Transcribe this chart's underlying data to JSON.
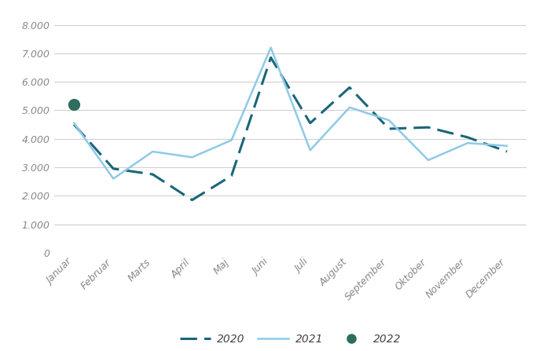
{
  "months": [
    "Januar",
    "Februar",
    "Marts",
    "April",
    "Maj",
    "Juni",
    "Juli",
    "August",
    "September",
    "Oktober",
    "November",
    "December"
  ],
  "data_2020": [
    4500,
    2950,
    2750,
    1850,
    2700,
    6850,
    4550,
    5800,
    4350,
    4400,
    4050,
    3550
  ],
  "data_2021": [
    4550,
    2600,
    3550,
    3350,
    3950,
    7200,
    3600,
    5100,
    4650,
    3250,
    3850,
    3750
  ],
  "data_2022_x": [
    0
  ],
  "data_2022_y": [
    5200
  ],
  "color_2020": "#1a6678",
  "color_2021": "#8ecae6",
  "color_2022": "#2d6e5e",
  "ylim": [
    0,
    8500
  ],
  "yticks": [
    0,
    1000,
    2000,
    3000,
    4000,
    5000,
    6000,
    7000,
    8000
  ],
  "ytick_labels": [
    "0",
    "1.000",
    "2.000",
    "3.000",
    "4.000",
    "5.000",
    "6.000",
    "7.000",
    "8.000"
  ],
  "background_color": "#ffffff",
  "grid_color": "#d0d0d0",
  "legend_labels": [
    "2020",
    "2021",
    "2022"
  ],
  "tick_fontsize": 9,
  "legend_fontsize": 10
}
